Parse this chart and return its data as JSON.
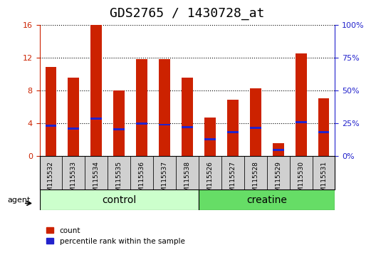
{
  "title": "GDS2765 / 1430728_at",
  "categories": [
    "GSM115532",
    "GSM115533",
    "GSM115534",
    "GSM115535",
    "GSM115536",
    "GSM115537",
    "GSM115538",
    "GSM115526",
    "GSM115527",
    "GSM115528",
    "GSM115529",
    "GSM115530",
    "GSM115531"
  ],
  "red_values": [
    10.8,
    9.5,
    16.0,
    8.0,
    11.8,
    11.8,
    9.5,
    4.7,
    6.8,
    8.2,
    1.5,
    12.5,
    7.0
  ],
  "blue_values": [
    3.7,
    3.3,
    4.5,
    3.2,
    3.9,
    3.8,
    3.5,
    2.0,
    2.9,
    3.4,
    0.7,
    4.1,
    2.9
  ],
  "red_color": "#cc2200",
  "blue_color": "#2222cc",
  "ylim_left": [
    0,
    16
  ],
  "ylim_right": [
    0,
    100
  ],
  "yticks_left": [
    0,
    4,
    8,
    12,
    16
  ],
  "yticks_right": [
    0,
    25,
    50,
    75,
    100
  ],
  "group_control": [
    "GSM115532",
    "GSM115533",
    "GSM115534",
    "GSM115535",
    "GSM115536",
    "GSM115537",
    "GSM115538"
  ],
  "group_creatine": [
    "GSM115526",
    "GSM115527",
    "GSM115528",
    "GSM115529",
    "GSM115530",
    "GSM115531"
  ],
  "control_color": "#ccffcc",
  "creatine_color": "#66dd66",
  "agent_label": "agent",
  "control_label": "control",
  "creatine_label": "creatine",
  "legend_count": "count",
  "legend_percentile": "percentile rank within the sample",
  "bar_width": 0.5,
  "blue_bar_height": 0.25,
  "title_fontsize": 13,
  "tick_fontsize": 8,
  "label_fontsize": 9,
  "group_label_fontsize": 10
}
